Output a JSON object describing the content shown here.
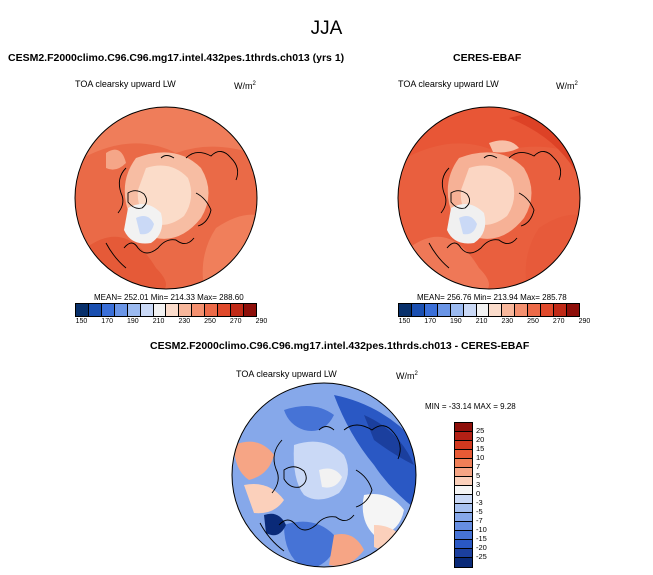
{
  "page_title": "JJA",
  "panels": [
    {
      "title": "CESM2.F2000climo.C96.C96.mg17.intel.432pes.1thrds.ch013 (yrs 1)",
      "variable": "TOA clearsky upward LW",
      "units": "W/m",
      "units_sup": "2",
      "stats": "MEAN= 252.01  Min= 214.33  Max= 288.60"
    },
    {
      "title": "CERES-EBAF",
      "variable": "TOA clearsky upward LW",
      "units": "W/m",
      "units_sup": "2",
      "stats": "MEAN= 256.76  Min= 213.94  Max= 285.78"
    },
    {
      "title": "CESM2.F2000climo.C96.C96.mg17.intel.432pes.1thrds.ch013 - CERES-EBAF",
      "variable": "TOA clearsky upward LW",
      "units": "W/m",
      "units_sup": "2",
      "stats": "MIN = -33.14 MAX =   9.28"
    }
  ],
  "colorbar_abs": {
    "colors": [
      "#08306b",
      "#1a4fb0",
      "#3a6fd8",
      "#6a95e6",
      "#9bbaf0",
      "#cad9f6",
      "#f2f2f2",
      "#fbdccb",
      "#f8b79b",
      "#f3906f",
      "#ec6a48",
      "#e04a2c",
      "#c02a17",
      "#8e0f0a"
    ],
    "tick_labels": [
      "150",
      "170",
      "190",
      "210",
      "230",
      "250",
      "270",
      "290"
    ]
  },
  "colorbar_diff": {
    "colors": [
      "#8e0f0a",
      "#b22015",
      "#d2391f",
      "#e85a35",
      "#f07f57",
      "#f6a585",
      "#fbd0bb",
      "#f5f5f5",
      "#cad9f6",
      "#a7c1f0",
      "#86a8ea",
      "#668ee2",
      "#4673d6",
      "#2a58c4",
      "#1b3f9e",
      "#0a2a78"
    ],
    "tick_labels": [
      "25",
      "20",
      "15",
      "10",
      "7",
      "5",
      "3",
      "0",
      "-3",
      "-5",
      "-7",
      "-10",
      "-15",
      "-20",
      "-25"
    ]
  },
  "chart_data": [
    {
      "type": "heatmap",
      "title": "CESM2.F2000climo.C96.C96.mg17.intel.432pes.1thrds.ch013 (yrs 1)",
      "projection": "north polar stereographic",
      "variable": "TOA clearsky upward LW",
      "units": "W/m2",
      "season": "JJA",
      "mean": 252.01,
      "min": 214.33,
      "max": 288.6,
      "color_levels": [
        150,
        160,
        170,
        180,
        190,
        200,
        210,
        220,
        230,
        240,
        250,
        260,
        270,
        280,
        290
      ]
    },
    {
      "type": "heatmap",
      "title": "CERES-EBAF",
      "projection": "north polar stereographic",
      "variable": "TOA clearsky upward LW",
      "units": "W/m2",
      "season": "JJA",
      "mean": 256.76,
      "min": 213.94,
      "max": 285.78,
      "color_levels": [
        150,
        160,
        170,
        180,
        190,
        200,
        210,
        220,
        230,
        240,
        250,
        260,
        270,
        280,
        290
      ]
    },
    {
      "type": "heatmap",
      "title": "CESM2.F2000climo.C96.C96.mg17.intel.432pes.1thrds.ch013 - CERES-EBAF",
      "projection": "north polar stereographic",
      "variable": "TOA clearsky upward LW",
      "units": "W/m2",
      "season": "JJA",
      "min": -33.14,
      "max": 9.28,
      "color_levels": [
        -25,
        -20,
        -15,
        -10,
        -7,
        -5,
        -3,
        0,
        3,
        5,
        7,
        10,
        15,
        20,
        25
      ]
    }
  ]
}
